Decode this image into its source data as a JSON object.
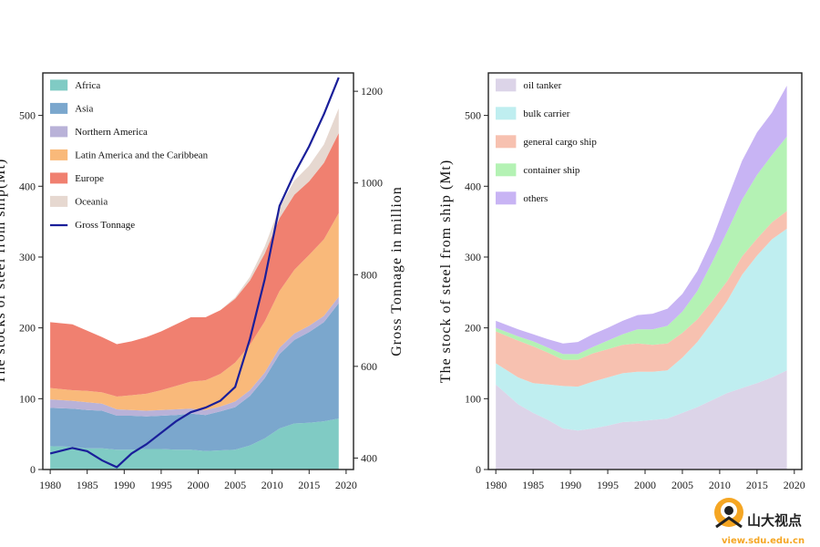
{
  "chart_data": [
    {
      "type": "area",
      "stacked": true,
      "x": [
        1980,
        1983,
        1985,
        1987,
        1989,
        1991,
        1993,
        1995,
        1997,
        1999,
        2001,
        2003,
        2005,
        2007,
        2009,
        2011,
        2013,
        2015,
        2017,
        2019
      ],
      "series": [
        {
          "name": "Africa",
          "color": "#80cbc4",
          "values": [
            33,
            32,
            30,
            30,
            28,
            28,
            29,
            29,
            28,
            28,
            26,
            27,
            28,
            34,
            44,
            58,
            65,
            66,
            68,
            72
          ]
        },
        {
          "name": "Asia",
          "color": "#7ba7cd",
          "values": [
            54,
            54,
            54,
            53,
            48,
            48,
            46,
            47,
            49,
            51,
            51,
            55,
            60,
            70,
            85,
            105,
            118,
            128,
            140,
            163
          ]
        },
        {
          "name": "Northern America",
          "color": "#b9b2d8",
          "values": [
            12,
            11,
            11,
            10,
            9,
            8,
            8,
            8,
            8,
            7,
            7,
            7,
            8,
            8,
            8,
            9,
            9,
            9,
            9,
            9
          ]
        },
        {
          "name": "Latin America and the Caribbean",
          "color": "#f9b97a",
          "values": [
            16,
            15,
            16,
            16,
            18,
            21,
            24,
            28,
            33,
            38,
            42,
            46,
            55,
            64,
            72,
            80,
            90,
            100,
            108,
            118
          ]
        },
        {
          "name": "Europe",
          "color": "#f08070",
          "values": [
            93,
            93,
            85,
            78,
            74,
            76,
            80,
            83,
            87,
            91,
            89,
            90,
            90,
            91,
            96,
            103,
            106,
            104,
            108,
            113
          ]
        },
        {
          "name": "Oceania",
          "color": "#e6d8d0",
          "values": [
            0,
            0,
            0,
            0,
            0,
            0,
            0,
            0,
            0,
            0,
            0,
            0,
            2,
            5,
            10,
            15,
            20,
            22,
            26,
            35
          ]
        }
      ],
      "line_series": {
        "name": "Gross Tonnage",
        "axis": "right",
        "color": "#1a1f9a",
        "values": [
          410,
          422,
          415,
          395,
          380,
          410,
          430,
          455,
          480,
          500,
          510,
          525,
          555,
          660,
          790,
          950,
          1020,
          1080,
          1150,
          1230
        ]
      },
      "xlim": [
        1979,
        2021
      ],
      "ylim": [
        0,
        560
      ],
      "ylim_right": [
        375,
        1240
      ],
      "xticks": [
        1980,
        1985,
        1990,
        1995,
        2000,
        2005,
        2010,
        2015,
        2020
      ],
      "yticks": [
        0,
        100,
        200,
        300,
        400,
        500
      ],
      "yticks_right": [
        400,
        600,
        800,
        1000,
        1200
      ],
      "ylabel": "The stocks of steel from ship(Mt)",
      "ylabel_right": "Gross Tonnage in million",
      "legend": "top-left"
    },
    {
      "type": "area",
      "stacked": true,
      "x": [
        1980,
        1983,
        1985,
        1987,
        1989,
        1991,
        1993,
        1995,
        1997,
        1999,
        2001,
        2003,
        2005,
        2007,
        2009,
        2011,
        2013,
        2015,
        2017,
        2019
      ],
      "series": [
        {
          "name": "oil tanker",
          "color": "#dcd4e8",
          "values": [
            120,
            92,
            80,
            70,
            58,
            55,
            58,
            62,
            67,
            68,
            70,
            72,
            80,
            88,
            98,
            108,
            115,
            122,
            130,
            140
          ]
        },
        {
          "name": "bulk carrier",
          "color": "#bfeef0",
          "values": [
            30,
            38,
            42,
            50,
            60,
            62,
            66,
            68,
            69,
            70,
            68,
            68,
            78,
            92,
            110,
            130,
            160,
            180,
            195,
            200
          ]
        },
        {
          "name": "general cargo ship",
          "color": "#f7c1b0",
          "values": [
            45,
            52,
            52,
            45,
            37,
            38,
            40,
            40,
            40,
            40,
            38,
            38,
            35,
            32,
            30,
            28,
            26,
            24,
            24,
            25
          ]
        },
        {
          "name": "container ship",
          "color": "#b4f2b4",
          "values": [
            5,
            6,
            7,
            7,
            8,
            8,
            9,
            12,
            15,
            20,
            22,
            25,
            30,
            40,
            55,
            70,
            80,
            90,
            95,
            105
          ]
        },
        {
          "name": "others",
          "color": "#c8b4f4",
          "values": [
            10,
            10,
            10,
            12,
            15,
            17,
            18,
            18,
            19,
            20,
            22,
            24,
            25,
            28,
            32,
            45,
            55,
            60,
            60,
            72
          ]
        }
      ],
      "xlim": [
        1979,
        2021
      ],
      "ylim": [
        0,
        560
      ],
      "xticks": [
        1980,
        1985,
        1990,
        1995,
        2000,
        2005,
        2010,
        2015,
        2020
      ],
      "yticks": [
        0,
        100,
        200,
        300,
        400,
        500
      ],
      "ylabel": "The stock of steel from ship (Mt)",
      "legend": "top-left"
    }
  ],
  "watermark": {
    "brand": "山大视点",
    "url": "view.sdu.edu.cn"
  }
}
